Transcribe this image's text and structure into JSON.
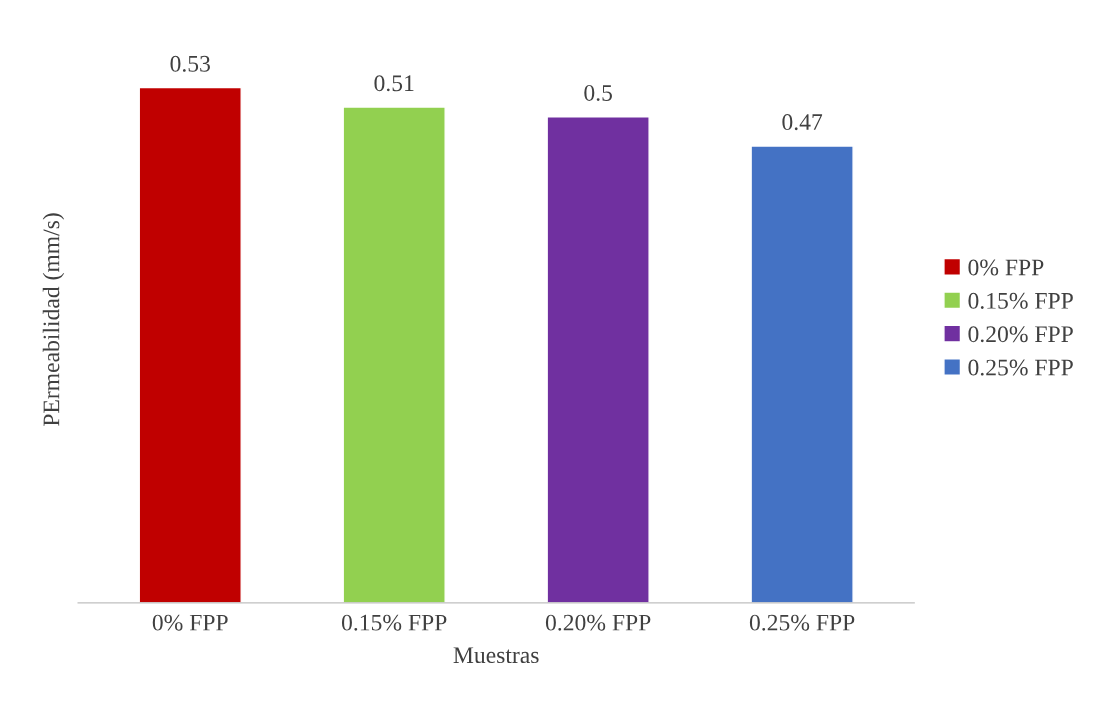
{
  "chart_data": {
    "type": "bar",
    "categories": [
      "0% FPP",
      "0.15% FPP",
      "0.20% FPP",
      "0.25% FPP"
    ],
    "series": [
      {
        "name": "0% FPP",
        "color": "#c00000",
        "values": [
          0.53,
          null,
          null,
          null
        ]
      },
      {
        "name": "0.15% FPP",
        "color": "#92d050",
        "values": [
          null,
          0.51,
          null,
          null
        ]
      },
      {
        "name": "0.20% FPP",
        "color": "#7030a0",
        "values": [
          null,
          null,
          0.5,
          null
        ]
      },
      {
        "name": "0.25% FPP",
        "color": "#4472c4",
        "values": [
          null,
          null,
          null,
          0.47
        ]
      }
    ],
    "xlabel": "Muestras",
    "ylabel": "PErmeabilidad (mm/s)",
    "tick_labels": "x",
    "data_labels": true,
    "legend": "right",
    "grid": false
  }
}
